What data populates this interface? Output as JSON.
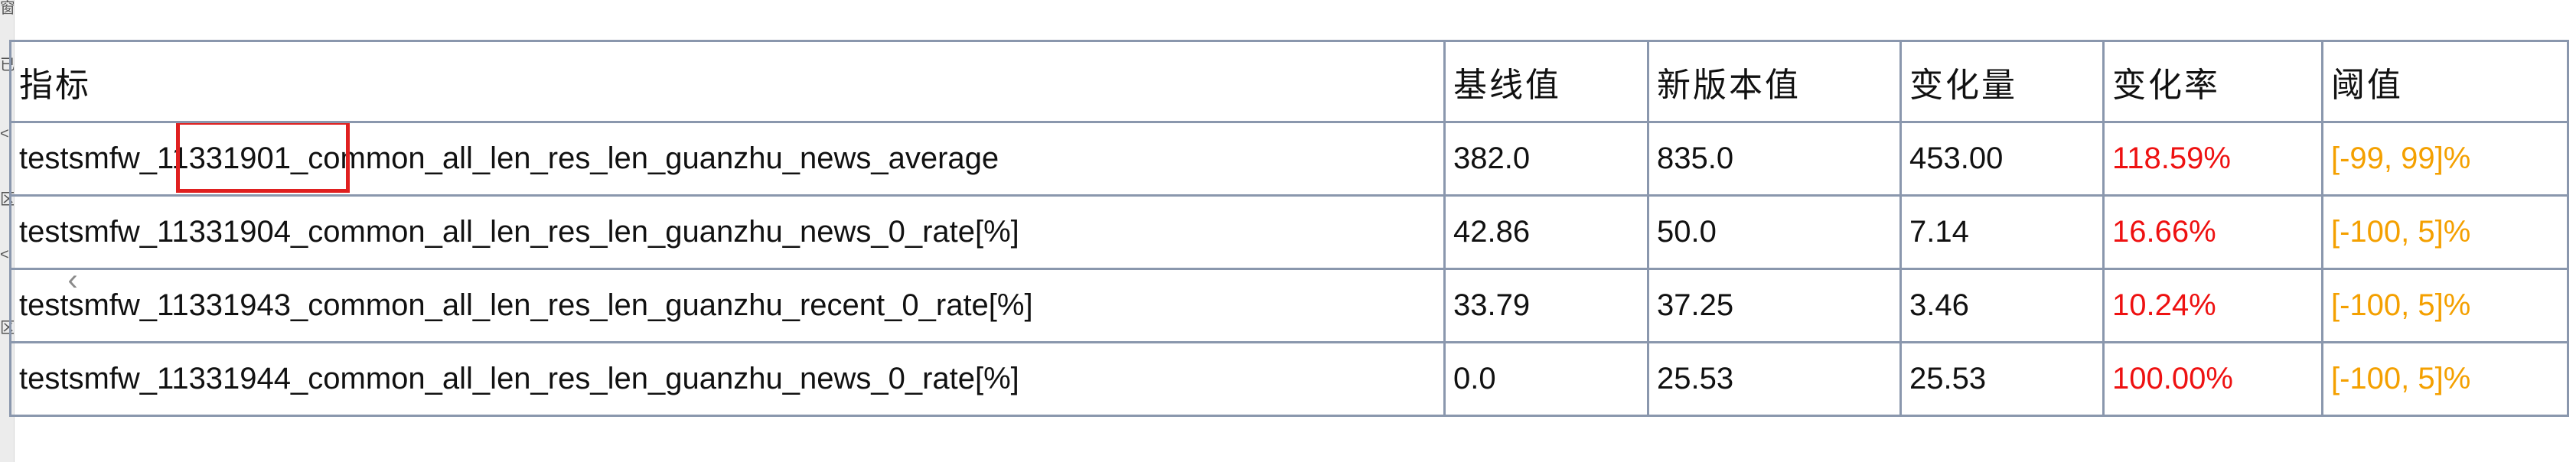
{
  "side_panel": {
    "glyphs": [
      "窗",
      "已",
      "<",
      "区",
      "<",
      "区"
    ]
  },
  "table": {
    "headers": [
      "指标",
      "基线值",
      "新版本值",
      "变化量",
      "变化率",
      "阈值"
    ],
    "rows": [
      {
        "metric": "testsmfw_11331901_common_all_len_res_len_guanzhu_news_average",
        "baseline": "382.0",
        "new_value": "835.0",
        "change": "453.00",
        "change_rate": "118.59%",
        "threshold": "[-99, 99]%"
      },
      {
        "metric": "testsmfw_11331904_common_all_len_res_len_guanzhu_news_0_rate[%]",
        "baseline": "42.86",
        "new_value": "50.0",
        "change": "7.14",
        "change_rate": "16.66%",
        "threshold": "[-100, 5]%"
      },
      {
        "metric": "testsmfw_11331943_common_all_len_res_len_guanzhu_recent_0_rate[%]",
        "baseline": "33.79",
        "new_value": "37.25",
        "change": "3.46",
        "change_rate": "10.24%",
        "threshold": "[-100, 5]%"
      },
      {
        "metric": "testsmfw_11331944_common_all_len_res_len_guanzhu_news_0_rate[%]",
        "baseline": "0.0",
        "new_value": "25.53",
        "change": "25.53",
        "change_rate": "100.00%",
        "threshold": "[-100, 5]%"
      }
    ],
    "highlight_text": "11331901"
  },
  "icons": {
    "collapse": "chevron-left-icon"
  },
  "colors": {
    "border": "#8a97ad",
    "change_rate": "#ee1111",
    "threshold": "#f4a000",
    "highlight_box": "#e02020"
  }
}
